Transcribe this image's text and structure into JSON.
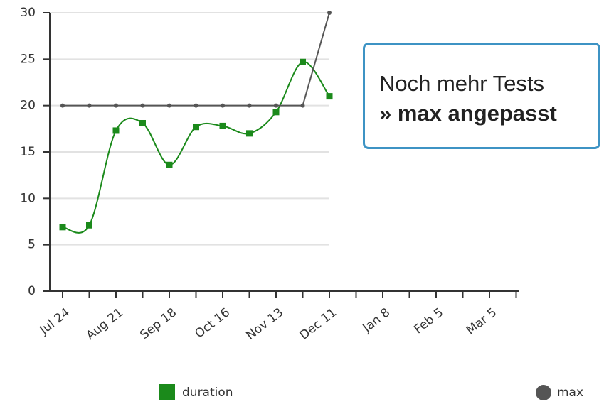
{
  "chart_data": {
    "type": "line",
    "categories": [
      "Jul 24",
      null,
      "Aug 21",
      null,
      "Sep 18",
      null,
      "Oct 16",
      null,
      "Nov 13",
      null,
      "Dec 11",
      null,
      "Jan 8",
      null,
      "Feb 5",
      null,
      "Mar 5",
      null
    ],
    "series": [
      {
        "name": "duration",
        "color": "#1b8a1b",
        "smooth": true,
        "marker": "square",
        "values": [
          6.9,
          7.1,
          17.3,
          18.1,
          13.6,
          17.7,
          17.8,
          17.0,
          19.3,
          24.7,
          21.0,
          null,
          null,
          null,
          null,
          null,
          null,
          null
        ]
      },
      {
        "name": "max",
        "color": "#555555",
        "smooth": false,
        "marker": "circle",
        "values": [
          20,
          20,
          20,
          20,
          20,
          20,
          20,
          20,
          20,
          20,
          30,
          null,
          null,
          null,
          null,
          null,
          null,
          null
        ]
      }
    ],
    "ylim": [
      0,
      30
    ],
    "yticks": [
      0,
      5,
      10,
      15,
      20,
      25,
      30
    ],
    "grid": true,
    "annotation": {
      "line1": "Noch mehr Tests",
      "line2": "» max angepasst"
    }
  }
}
